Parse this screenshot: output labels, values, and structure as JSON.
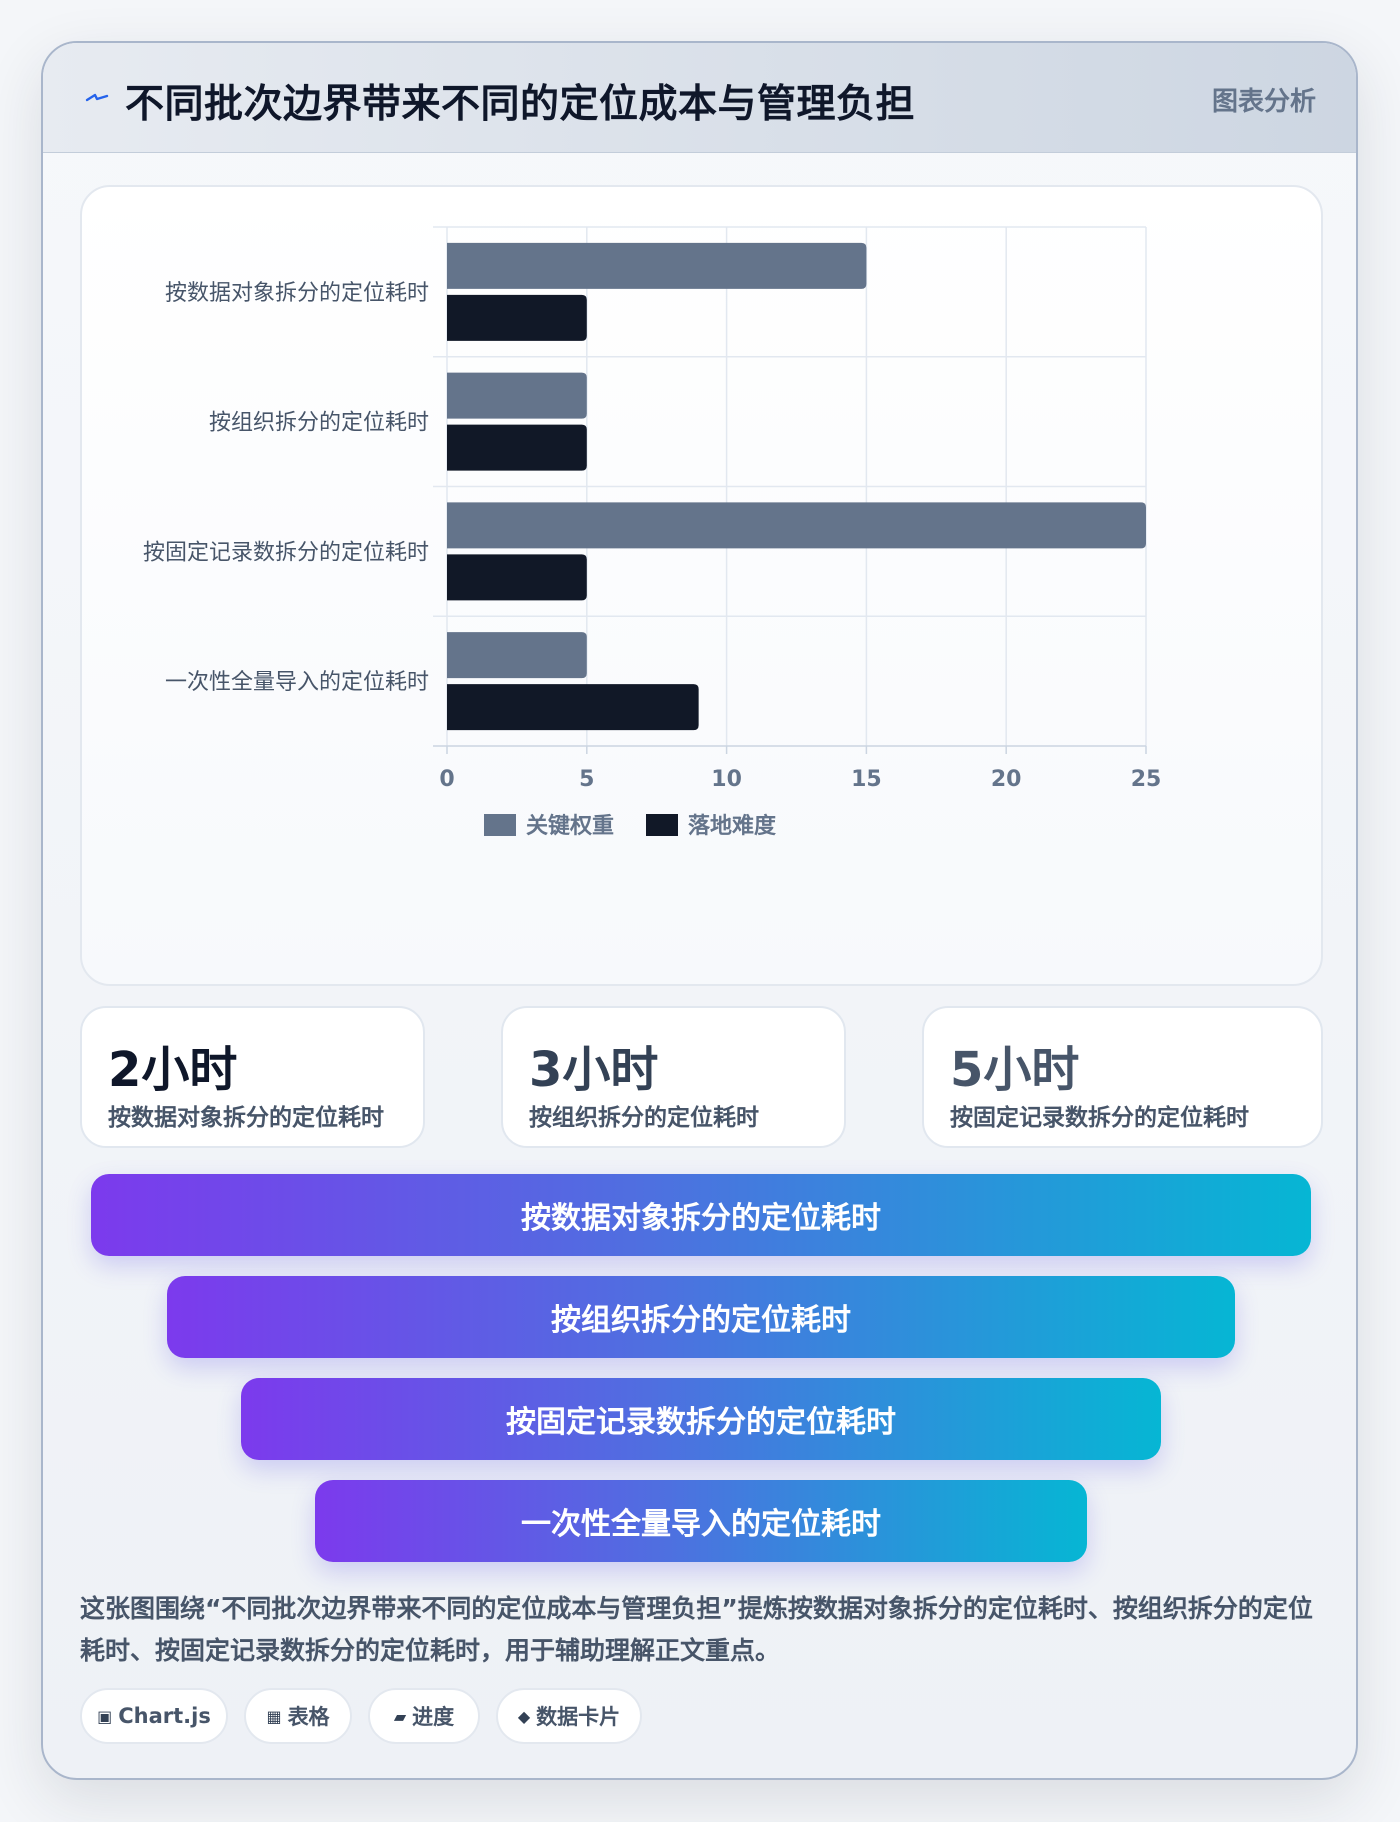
{
  "header": {
    "title": "不同批次边界带来不同的定位成本与管理负担",
    "tag": "图表分析"
  },
  "chart_data": {
    "type": "bar",
    "orientation": "horizontal",
    "categories": [
      "按数据对象拆分的定位耗时",
      "按组织拆分的定位耗时",
      "按固定记录数拆分的定位耗时",
      "一次性全量导入的定位耗时"
    ],
    "series": [
      {
        "name": "关键权重",
        "color": "#64748b",
        "values": [
          15,
          5,
          25,
          5
        ]
      },
      {
        "name": "落地难度",
        "color": "#111827",
        "values": [
          5,
          5,
          5,
          9
        ]
      }
    ],
    "xlim": [
      0,
      25
    ],
    "xticks": [
      0,
      5,
      10,
      15,
      20,
      25
    ],
    "grid": true,
    "legend": "bottom"
  },
  "stats": [
    {
      "value": "2小时",
      "label": "按数据对象拆分的定位耗时",
      "color": "#0f172a"
    },
    {
      "value": "3小时",
      "label": "按组织拆分的定位耗时",
      "color": "#334155"
    },
    {
      "value": "5小时",
      "label": "按固定记录数拆分的定位耗时",
      "color": "#475569"
    }
  ],
  "funnel": [
    "按数据对象拆分的定位耗时",
    "按组织拆分的定位耗时",
    "按固定记录数拆分的定位耗时",
    "一次性全量导入的定位耗时"
  ],
  "description": "这张图围绕“不同批次边界带来不同的定位成本与管理负担”提炼按数据对象拆分的定位耗时、按组织拆分的定位耗时、按固定记录数拆分的定位耗时，用于辅助理解正文重点。",
  "pills": [
    {
      "icon": "▣",
      "label": "Chart.js"
    },
    {
      "icon": "▦",
      "label": "表格"
    },
    {
      "icon": "▰",
      "label": "进度"
    },
    {
      "icon": "◆",
      "label": "数据卡片"
    }
  ]
}
